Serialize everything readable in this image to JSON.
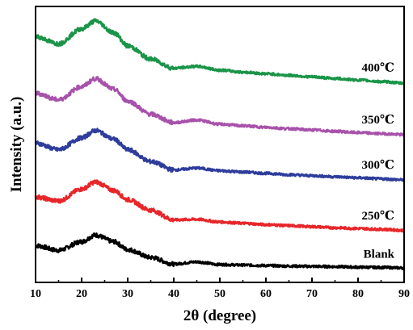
{
  "chart_data": {
    "type": "line",
    "xlabel": "2θ (degree)",
    "ylabel": "Intensity (a.u.)",
    "xlim": [
      10,
      90
    ],
    "xticks": [
      10,
      20,
      30,
      40,
      50,
      60,
      70,
      80,
      90
    ],
    "y_ticks_shown": false,
    "grid": false,
    "legend": "labels placed next to each curve at right",
    "x": [
      10,
      15,
      20,
      23,
      27,
      30,
      35,
      40,
      45,
      50,
      55,
      60,
      65,
      70,
      75,
      80,
      85,
      90
    ],
    "series": [
      {
        "name": "Blank",
        "color": "#000000",
        "values": [
          0.9,
          0.72,
          1.05,
          1.3,
          1.05,
          0.75,
          0.45,
          0.2,
          0.28,
          0.18,
          0.16,
          0.14,
          0.12,
          0.11,
          0.1,
          0.08,
          0.07,
          0.05
        ]
      },
      {
        "name": "250℃",
        "color": "#e8262a",
        "values": [
          2.75,
          2.6,
          3.05,
          3.32,
          3.0,
          2.65,
          2.25,
          1.88,
          1.9,
          1.8,
          1.75,
          1.7,
          1.66,
          1.62,
          1.58,
          1.55,
          1.52,
          1.48
        ]
      },
      {
        "name": "300℃",
        "color": "#2e3c9b",
        "values": [
          4.8,
          4.55,
          5.0,
          5.28,
          4.95,
          4.55,
          4.1,
          3.78,
          3.85,
          3.75,
          3.7,
          3.65,
          3.6,
          3.56,
          3.52,
          3.48,
          3.44,
          3.4
        ]
      },
      {
        "name": "350℃",
        "color": "#a752aa",
        "values": [
          6.7,
          6.45,
          6.95,
          7.25,
          6.85,
          6.4,
          5.9,
          5.58,
          5.68,
          5.52,
          5.46,
          5.4,
          5.35,
          5.3,
          5.25,
          5.2,
          5.16,
          5.12
        ]
      },
      {
        "name": "400℃",
        "color": "#1a9448",
        "values": [
          8.85,
          8.58,
          9.15,
          9.45,
          9.0,
          8.5,
          8.0,
          7.65,
          7.72,
          7.58,
          7.5,
          7.44,
          7.38,
          7.32,
          7.26,
          7.2,
          7.14,
          7.08
        ]
      }
    ]
  }
}
